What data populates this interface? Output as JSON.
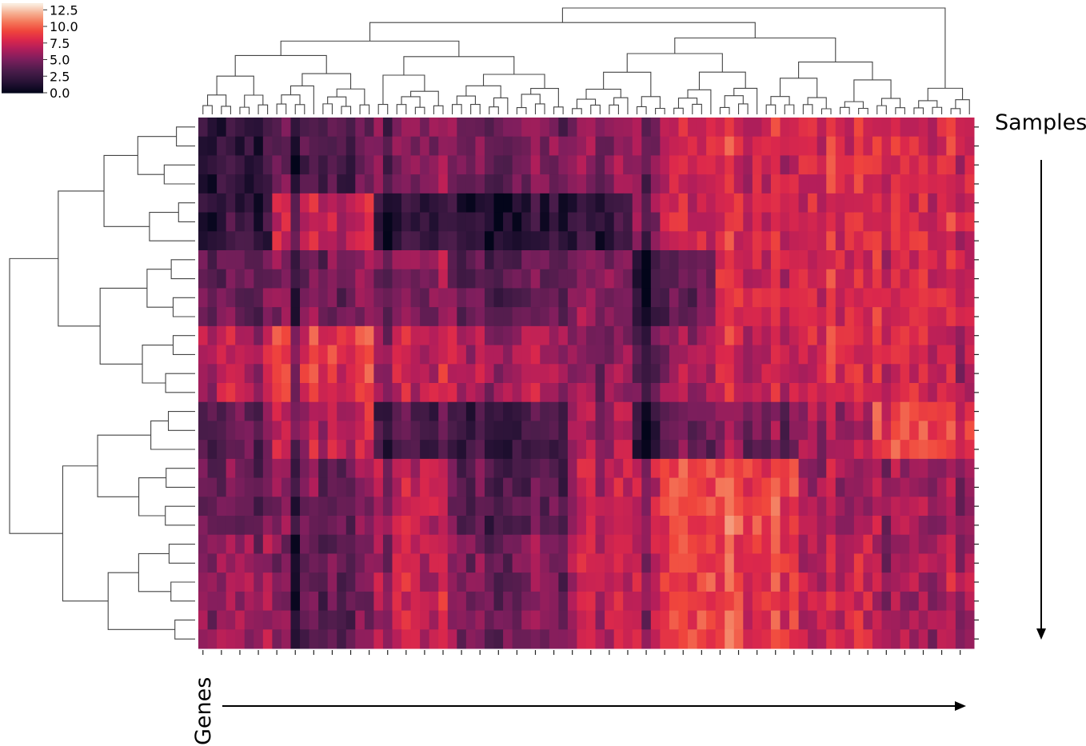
{
  "chart_data": {
    "type": "heatmap",
    "title": "",
    "n_rows": 28,
    "n_cols": 84,
    "colorbar": {
      "ticks": [
        "0.0",
        "2.5",
        "5.0",
        "7.5",
        "10.0",
        "12.5"
      ],
      "range": [
        0,
        13.5
      ],
      "colormap": "rocket"
    },
    "row_annotation": "Samples",
    "col_annotation": "Genes",
    "row_clusters": [
      {
        "rows": 4,
        "levels": [
          1,
          1,
          7,
          7,
          7,
          7,
          7,
          7,
          7,
          7
        ]
      },
      {
        "rows": 3,
        "levels": [
          1,
          7,
          1,
          1,
          1,
          7,
          7,
          7,
          7,
          7
        ]
      },
      {
        "rows": 4,
        "levels": [
          5,
          3,
          7,
          6,
          7,
          1,
          7,
          7,
          7,
          7
        ]
      },
      {
        "rows": 4,
        "levels": [
          10,
          10,
          10,
          10,
          7,
          4,
          7,
          7,
          7,
          5
        ]
      },
      {
        "rows": 3,
        "levels": [
          5,
          7,
          3,
          3,
          9,
          1,
          2,
          4,
          9,
          9
        ]
      },
      {
        "rows": 4,
        "levels": [
          5,
          3,
          10,
          5,
          10,
          10,
          10,
          4,
          4,
          3
        ]
      },
      {
        "rows": 6,
        "levels": [
          8,
          2,
          10,
          7,
          10,
          10,
          9,
          6,
          4,
          5
        ]
      }
    ],
    "col_groups": [
      {
        "cols": 4,
        "base": 2.5
      },
      {
        "cols": 4,
        "base": 2.5
      },
      {
        "cols": 5,
        "base": 7.0
      },
      {
        "cols": 6,
        "base": 7.0
      },
      {
        "cols": 2,
        "base": 0.8
      },
      {
        "cols": 6,
        "base": 4.0
      },
      {
        "cols": 7,
        "base": 2.0
      },
      {
        "cols": 6,
        "base": 2.0
      },
      {
        "cols": 7,
        "base": 3.0
      },
      {
        "cols": 4,
        "base": 6.0
      },
      {
        "cols": 5,
        "base": 9.0
      },
      {
        "cols": 5,
        "base": 9.5
      },
      {
        "cols": 4,
        "base": 9.5
      },
      {
        "cols": 4,
        "base": 9.5
      },
      {
        "cols": 4,
        "base": 8.5
      },
      {
        "cols": 4,
        "base": 9.5
      },
      {
        "cols": 4,
        "base": 9.0
      },
      {
        "cols": 3,
        "base": 8.5
      }
    ],
    "xlabel": "",
    "ylabel": ""
  },
  "labels": {
    "samples": "Samples",
    "genes": "Genes"
  }
}
